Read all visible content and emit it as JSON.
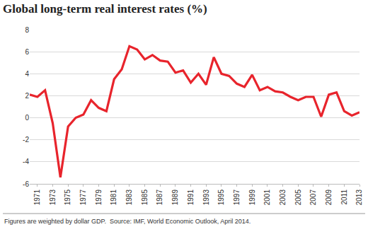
{
  "chart_data": {
    "type": "line",
    "title": "Global long-term real interest rates (%)",
    "note": "Figures are weighted by dollar GDP.  Source: IMF, World Economic Outlook, April 2014.",
    "x": [
      1970,
      1971,
      1972,
      1973,
      1974,
      1975,
      1976,
      1977,
      1978,
      1979,
      1980,
      1981,
      1982,
      1983,
      1984,
      1985,
      1986,
      1987,
      1988,
      1989,
      1990,
      1991,
      1992,
      1993,
      1994,
      1995,
      1996,
      1997,
      1998,
      1999,
      2000,
      2001,
      2002,
      2003,
      2004,
      2005,
      2006,
      2007,
      2008,
      2009,
      2010,
      2011,
      2012,
      2013
    ],
    "values": [
      2.1,
      1.9,
      2.5,
      -0.5,
      -5.4,
      -0.8,
      0.0,
      0.3,
      1.6,
      0.9,
      0.6,
      3.5,
      4.4,
      6.5,
      6.2,
      5.3,
      5.7,
      5.2,
      5.1,
      4.1,
      4.3,
      3.2,
      4.0,
      3.0,
      5.5,
      4.0,
      3.8,
      3.1,
      2.8,
      3.9,
      2.5,
      2.8,
      2.4,
      2.3,
      1.9,
      1.6,
      1.9,
      1.9,
      0.1,
      2.1,
      2.3,
      0.6,
      0.2,
      0.5
    ],
    "color": "#e8242c",
    "xlim": [
      1970,
      2013
    ],
    "xticks": [
      1971,
      1973,
      1975,
      1977,
      1979,
      1981,
      1983,
      1985,
      1987,
      1989,
      1991,
      1993,
      1995,
      1997,
      1999,
      2001,
      2003,
      2005,
      2007,
      2009,
      2011,
      2013
    ],
    "ylim": [
      -6,
      8
    ],
    "yticks": [
      -6,
      -4,
      -2,
      0,
      2,
      4,
      6,
      8
    ],
    "grid": true
  }
}
